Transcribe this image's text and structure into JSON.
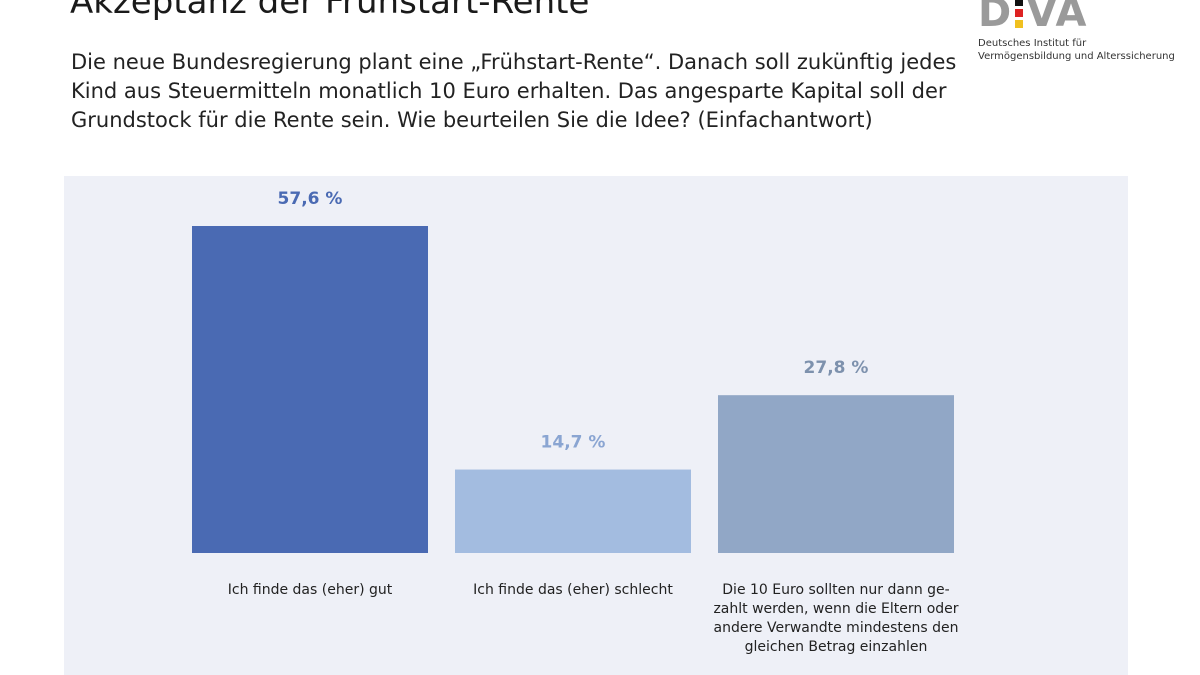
{
  "title": "Akzeptanz der Frühstart-Rente",
  "subtitle": "Die neue Bundesregierung plant eine „Frühstart-Rente“. Danach soll zukünftig jedes Kind aus Steuermitteln monatlich 10 Euro erhalten. Das angesparte Kapital soll der Grundstock für die Rente sein. Wie beurteilen Sie die Idee? (Einfachantwort)",
  "logo": {
    "text": "DIVA",
    "name_line1": "Deutsches Institut für",
    "name_line2": "Vermögensbildung und Alterssicherung"
  },
  "chart_data": {
    "type": "bar",
    "categories": [
      "Ich finde das (eher) gut",
      "Ich finde das (eher) schlecht",
      "Die 10 Euro sollten nur dann ge-zahlt werden, wenn die Eltern oder andere Verwandte mindestens den gleichen Betrag einzahlen"
    ],
    "values": [
      57.6,
      14.7,
      27.8
    ],
    "value_labels": [
      "57,6 %",
      "14,7 %",
      "27,8 %"
    ],
    "colors": [
      "#4a6ab3",
      "#a3bce0",
      "#91a7c6"
    ],
    "label_colors": [
      "#4a6ab3",
      "#8aa5d2",
      "#7d91ad"
    ],
    "ylim": [
      0,
      60
    ],
    "grid": false
  }
}
